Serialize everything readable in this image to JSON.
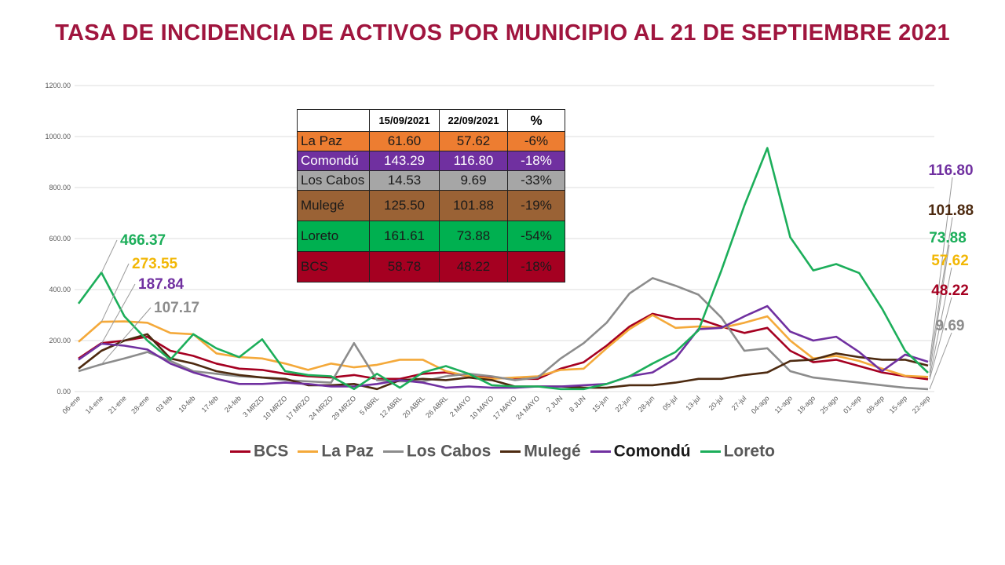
{
  "title": "TASA DE INCIDENCIA DE ACTIVOS POR MUNICIPIO AL 21 DE SEPTIEMBRE 2021",
  "table": {
    "headers": [
      "",
      "15/09/2021",
      "22/09/2021",
      "%"
    ],
    "rows": [
      {
        "name": "La Paz",
        "v1": "61.60",
        "v2": "57.62",
        "pct": "-6%",
        "bg": "#ed7d31",
        "fg": "#1a1a1a"
      },
      {
        "name": "Comondú",
        "v1": "143.29",
        "v2": "116.80",
        "pct": "-18%",
        "bg": "#7030a0",
        "fg": "#ffffff"
      },
      {
        "name": "Los Cabos",
        "v1": "14.53",
        "v2": "9.69",
        "pct": "-33%",
        "bg": "#a6a6a6",
        "fg": "#1a1a1a"
      },
      {
        "name": "Mulegé",
        "v1": "125.50",
        "v2": "101.88",
        "pct": "-19%",
        "bg": "#9a6235",
        "fg": "#1a1a1a"
      },
      {
        "name": "Loreto",
        "v1": "161.61",
        "v2": "73.88",
        "pct": "-54%",
        "bg": "#00b050",
        "fg": "#1a1a1a"
      },
      {
        "name": "BCS",
        "v1": "58.78",
        "v2": "48.22",
        "pct": "-18%",
        "bg": "#a50021",
        "fg": "#1a1a1a"
      }
    ]
  },
  "annotations": {
    "left": [
      {
        "text": "466.37",
        "series": "Loreto"
      },
      {
        "text": "273.55",
        "series": "La Paz"
      },
      {
        "text": "187.84",
        "series": "Comondú"
      },
      {
        "text": "107.17",
        "series": "Los Cabos"
      }
    ],
    "right": [
      {
        "text": "116.80",
        "series": "Comondú"
      },
      {
        "text": "101.88",
        "series": "Mulegé"
      },
      {
        "text": "73.88",
        "series": "Loreto"
      },
      {
        "text": "57.62",
        "series": "La Paz"
      },
      {
        "text": "48.22",
        "series": "BCS"
      },
      {
        "text": "9.69",
        "series": "Los Cabos"
      }
    ]
  },
  "chart_data": {
    "type": "line",
    "ylim": [
      0,
      1200
    ],
    "yticks": [
      "0.00",
      "200.00",
      "400.00",
      "600.00",
      "800.00",
      "1000.00",
      "1200.00"
    ],
    "grid": true,
    "legend_position": "bottom",
    "categories": [
      "06-ene",
      "14-ene",
      "21-ene",
      "28-ene",
      "03 feb",
      "10-feb",
      "17-feb",
      "24-feb",
      "3 MRZO",
      "10 MRZO",
      "17 MRZO",
      "24 MRZO",
      "29 MRZO",
      "5 ABRL",
      "12 ABRL",
      "20 ABRL",
      "26 ABRL",
      "2 MAYO",
      "10 MAYO",
      "17 MAYO",
      "24 MAYO",
      "2 JUN",
      "8 JUN",
      "15-jun",
      "22-jun",
      "28-jun",
      "05-jul",
      "13-jul",
      "20-jul",
      "27-jul",
      "04-ago",
      "11-ago",
      "18-ago",
      "25-ago",
      "01-sep",
      "08-sep",
      "15-sep",
      "22-sep"
    ],
    "series": [
      {
        "name": "BCS",
        "color": "#a50021",
        "values": [
          130,
          190,
          200,
          215,
          160,
          140,
          110,
          90,
          85,
          70,
          60,
          55,
          65,
          50,
          50,
          70,
          75,
          60,
          55,
          50,
          50,
          90,
          115,
          180,
          255,
          305,
          285,
          285,
          255,
          230,
          250,
          160,
          115,
          125,
          100,
          75,
          60,
          48.22
        ]
      },
      {
        "name": "La Paz",
        "color": "#f4a93a",
        "values": [
          195,
          273.55,
          275,
          270,
          230,
          225,
          150,
          135,
          130,
          110,
          85,
          110,
          95,
          105,
          125,
          125,
          80,
          60,
          50,
          55,
          60,
          85,
          90,
          170,
          245,
          300,
          250,
          255,
          250,
          270,
          295,
          200,
          130,
          140,
          120,
          90,
          62,
          57.62
        ]
      },
      {
        "name": "Los Cabos",
        "color": "#8c8c8c",
        "values": [
          80,
          107.17,
          130,
          155,
          120,
          80,
          70,
          60,
          55,
          45,
          40,
          35,
          190,
          45,
          40,
          40,
          60,
          70,
          60,
          45,
          55,
          130,
          190,
          270,
          385,
          445,
          415,
          380,
          290,
          160,
          170,
          80,
          55,
          45,
          35,
          25,
          15,
          9.69
        ]
      },
      {
        "name": "Mulegé",
        "color": "#4d2a10",
        "values": [
          90,
          160,
          200,
          225,
          130,
          110,
          80,
          65,
          55,
          50,
          25,
          25,
          30,
          10,
          45,
          50,
          45,
          55,
          45,
          20,
          20,
          20,
          15,
          15,
          25,
          25,
          35,
          50,
          50,
          65,
          75,
          120,
          125,
          150,
          135,
          125,
          125,
          101.88
        ]
      },
      {
        "name": "Comondú",
        "color": "#7030a0",
        "values": [
          125,
          187.84,
          180,
          165,
          110,
          75,
          50,
          30,
          30,
          35,
          30,
          20,
          20,
          30,
          45,
          35,
          15,
          20,
          15,
          15,
          20,
          20,
          25,
          30,
          60,
          75,
          130,
          245,
          250,
          295,
          335,
          235,
          200,
          215,
          155,
          80,
          145,
          116.8
        ]
      },
      {
        "name": "Loreto",
        "color": "#1cae5a",
        "values": [
          345,
          466.37,
          295,
          200,
          125,
          225,
          170,
          135,
          205,
          80,
          65,
          60,
          10,
          70,
          15,
          75,
          100,
          70,
          25,
          20,
          20,
          10,
          10,
          30,
          60,
          110,
          155,
          240,
          475,
          730,
          955,
          605,
          475,
          500,
          465,
          325,
          160,
          73.88
        ]
      }
    ]
  }
}
